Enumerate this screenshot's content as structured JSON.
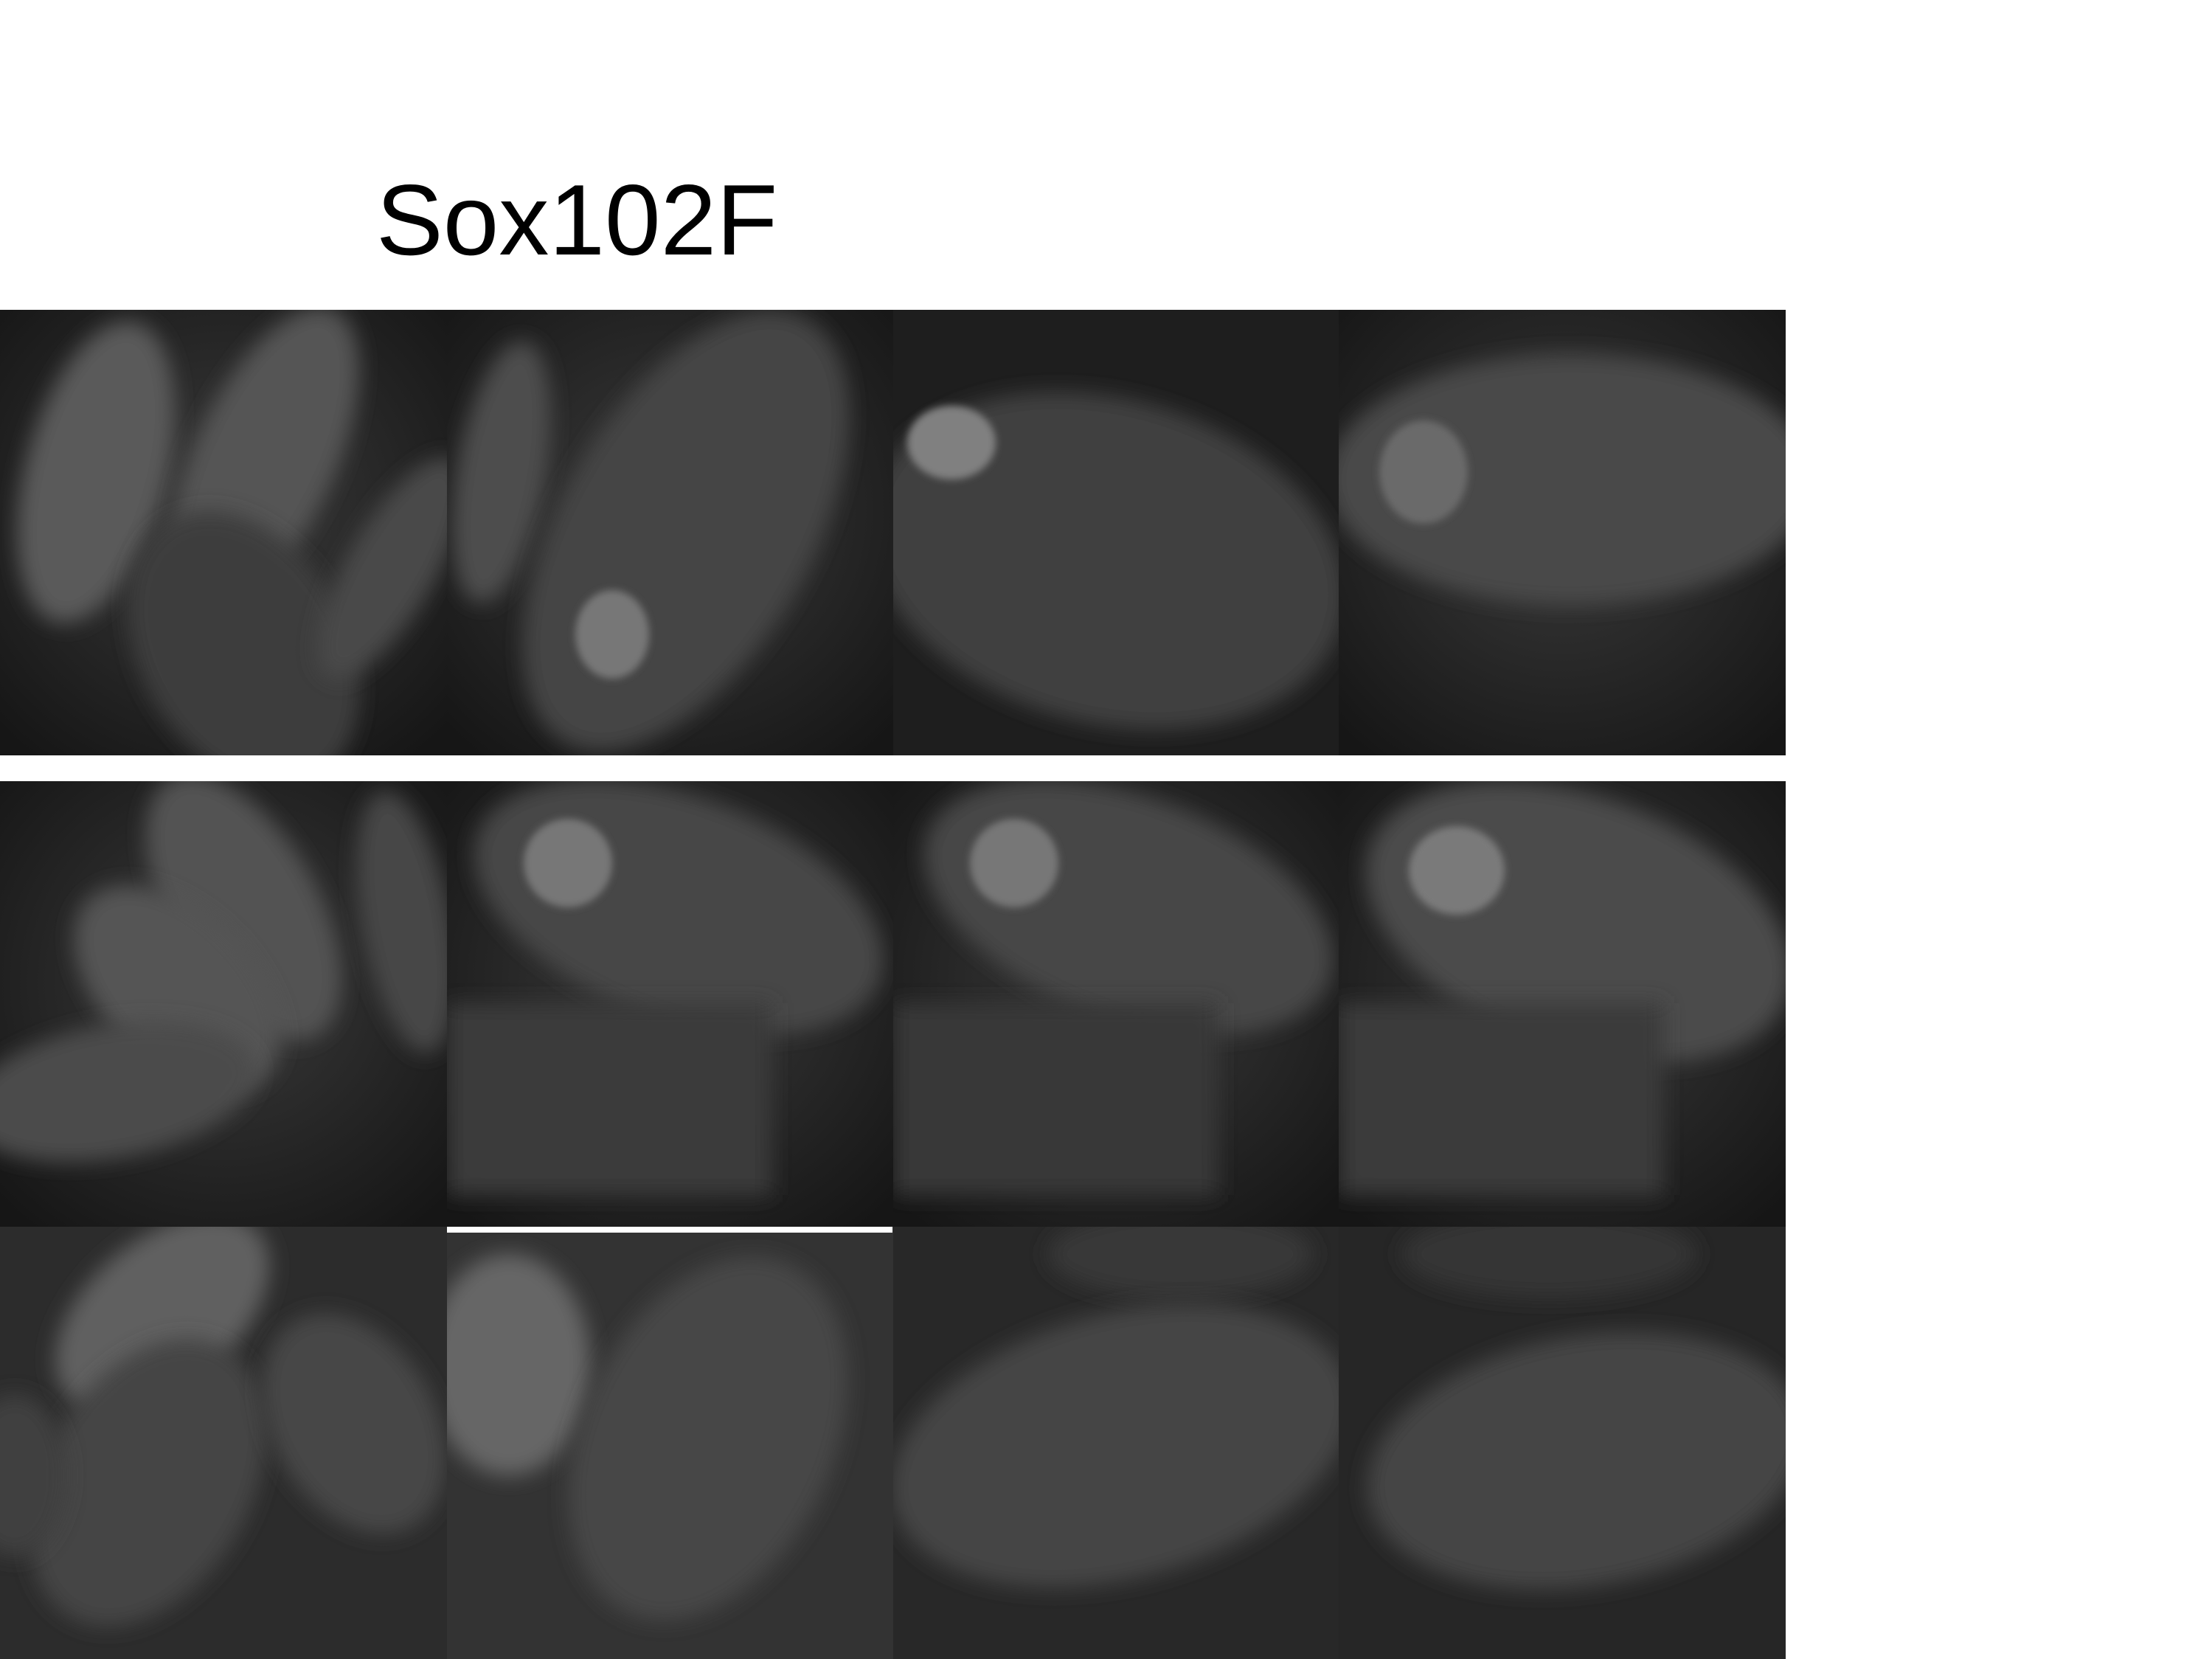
{
  "header": {
    "title": "Sox102F"
  }
}
